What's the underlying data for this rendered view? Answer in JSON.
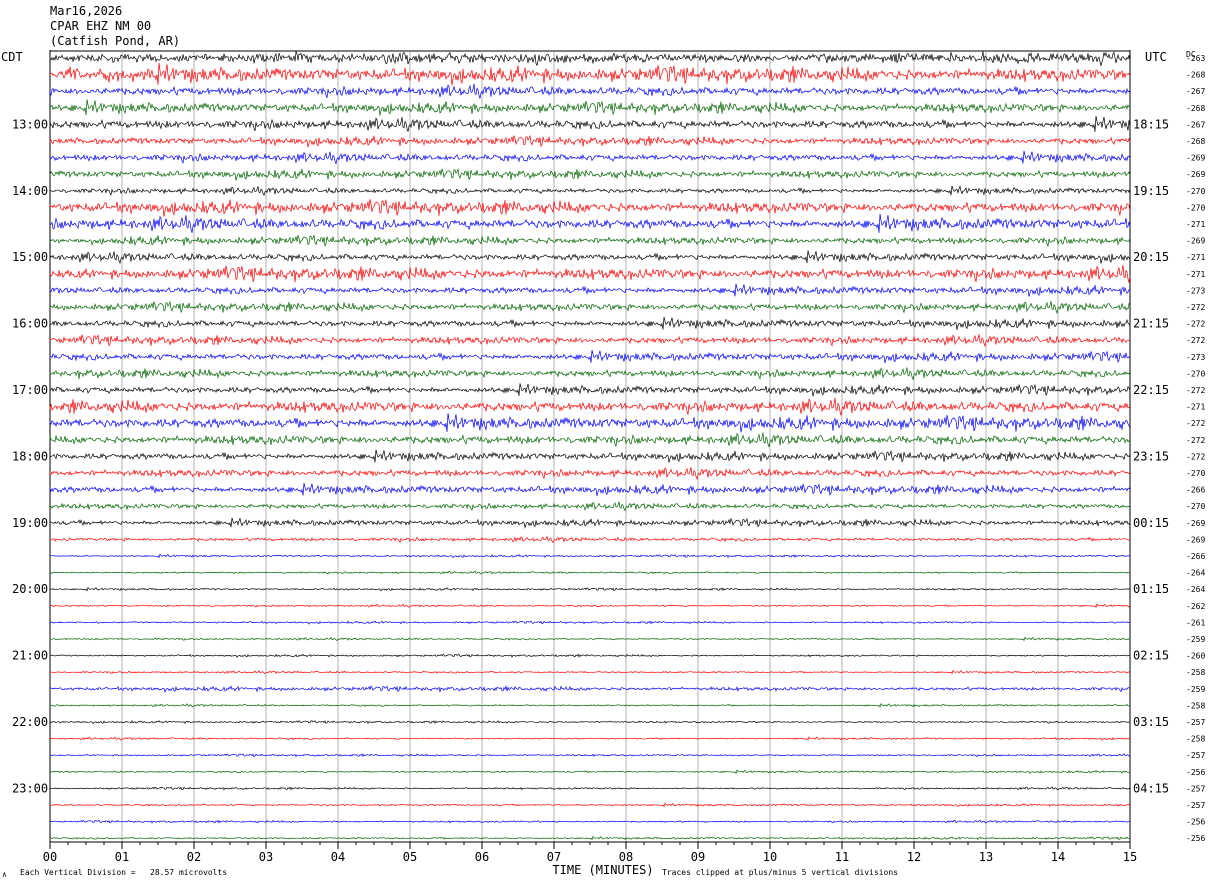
{
  "header": {
    "date": "Mar16,2026",
    "channel": "CPAR EHZ NM 00",
    "location": "(Catfish Pond, AR)"
  },
  "left_tz": "CDT",
  "right_tz": "UTC",
  "dc_label": "DC",
  "footer": {
    "scale_note": "Each Vertical Division =   28.57 microvolts",
    "clip_note": "Traces clipped at plus/minus 5 vertical divisions",
    "corner_mark": "∧"
  },
  "colors": {
    "black": "#000000",
    "red": "#ff0000",
    "blue": "#0000ff",
    "green": "#006400",
    "grid": "#808080"
  },
  "chart_data": {
    "type": "line",
    "title": "Mar16,2026 CPAR EHZ NM 00 (Catfish Pond, AR)",
    "xlabel": "TIME (MINUTES)",
    "ylabel": "",
    "xlim": [
      0,
      15
    ],
    "x_ticks": [
      "00",
      "01",
      "02",
      "03",
      "04",
      "05",
      "06",
      "07",
      "08",
      "09",
      "10",
      "11",
      "12",
      "13",
      "14",
      "15"
    ],
    "trace_minutes_per_line": 15,
    "trace_color_cycle": [
      "black",
      "red",
      "blue",
      "green"
    ],
    "left_hour_labels": [
      "13:00",
      "14:00",
      "15:00",
      "16:00",
      "17:00",
      "18:00",
      "19:00",
      "20:00",
      "21:00",
      "22:00",
      "23:00"
    ],
    "right_hour_labels": [
      "18:15",
      "19:15",
      "20:15",
      "21:15",
      "22:15",
      "23:15",
      "00:15",
      "01:15",
      "02:15",
      "03:15",
      "04:15"
    ],
    "dc_offsets": [
      -263,
      -268,
      -267,
      -268,
      -267,
      -268,
      -269,
      -269,
      -270,
      -270,
      -271,
      -269,
      -271,
      -271,
      -273,
      -272,
      -272,
      -272,
      -273,
      -270,
      -272,
      -271,
      -272,
      -272,
      -272,
      -270,
      -266,
      -270,
      -269,
      -269,
      -266,
      -264,
      -264,
      -262,
      -261,
      -259,
      -260,
      -258,
      -259,
      -258,
      -257,
      -258,
      -257,
      -256,
      -257,
      -257,
      -256,
      -256
    ],
    "amplitude_index": [
      5,
      7,
      5,
      5,
      5,
      4,
      4,
      4,
      3,
      6,
      6,
      4,
      4,
      6,
      4,
      4,
      4,
      4,
      4,
      4,
      4,
      6,
      6,
      5,
      4,
      4,
      4,
      3,
      3,
      2,
      1,
      1,
      1,
      1,
      1,
      1,
      1,
      1,
      2,
      1,
      1,
      1,
      1,
      1,
      1,
      1,
      1,
      1
    ]
  }
}
